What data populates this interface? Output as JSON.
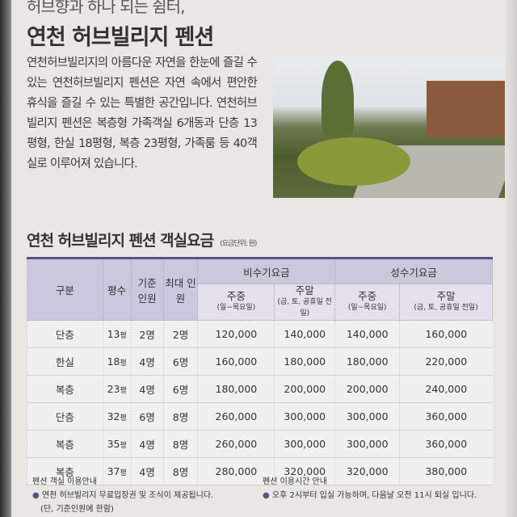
{
  "tagline": "허브향과 하나 되는 쉼터,",
  "title": "연천 허브빌리지 펜션",
  "paragraph": "연천허브빌리지의 아름다운 자연을 한눈에 즐길 수있는 연천허브빌리지 펜션은 자연 속에서 편안한 휴식을 즐길 수 있는 특별한 공간입니다. 연천허브빌리지 펜션은 복층형 가족객실 6개동과 단층 13평형, 한실 18평형, 복층 23평형, 가족룸 등 40객실로 이루어져 있습니다.",
  "rates": {
    "title": "연천 허브빌리지 펜션 객실요금",
    "unit": "(요금단위: 원)",
    "headers": {
      "type": "구분",
      "size": "평수",
      "base": "기준 인원",
      "max": "최대 인원",
      "off": "비수기요금",
      "peak": "성수기요금",
      "weekday": "주중",
      "weekday_sub": "(일~목요일)",
      "weekend": "주말",
      "weekend_sub": "(금, 토, 공휴일 전일)"
    },
    "rows": [
      [
        "단층",
        "13",
        "2명",
        "2명",
        "120,000",
        "140,000",
        "140,000",
        "160,000"
      ],
      [
        "한실",
        "18",
        "4명",
        "6명",
        "160,000",
        "180,000",
        "180,000",
        "220,000"
      ],
      [
        "복층",
        "23",
        "4명",
        "6명",
        "180,000",
        "200,000",
        "200,000",
        "240,000"
      ],
      [
        "단층",
        "32",
        "6명",
        "8명",
        "260,000",
        "300,000",
        "300,000",
        "360,000"
      ],
      [
        "복층",
        "35",
        "4명",
        "8명",
        "260,000",
        "300,000",
        "300,000",
        "360,000"
      ],
      [
        "복층",
        "37",
        "4명",
        "8명",
        "280,000",
        "320,000",
        "320,000",
        "380,000"
      ]
    ],
    "pyeong": "평"
  },
  "notes": {
    "room_title": "펜션 객실 이용안내",
    "room_item": "연천 허브빌리지 무료입장권 및 조식이 제공됩니다.",
    "room_sub": "(단, 기준인원에 한함)",
    "time_title": "펜션 이용시간 안내",
    "time_item": "오후 2시부터 입실 가능하며, 다음날 오전 11시 퇴실 입니다."
  }
}
